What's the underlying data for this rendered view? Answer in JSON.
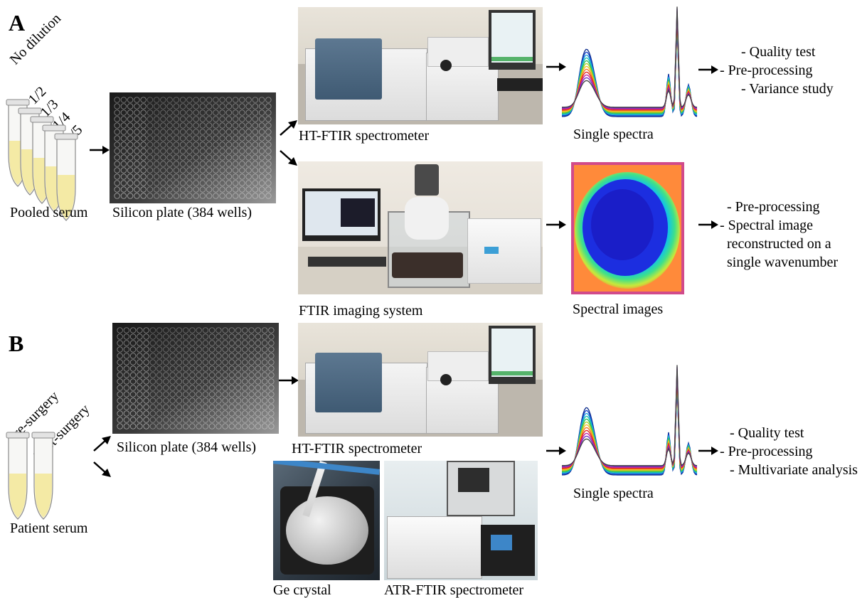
{
  "panels": {
    "a": "A",
    "b": "B"
  },
  "section_a": {
    "dilutions": [
      "No dilution",
      "1/2",
      "1/3",
      "1/4",
      "1/5"
    ],
    "serum_label": "Pooled serum",
    "plate_label": "Silicon plate (384 wells)",
    "ht_label": "HT-FTIR spectrometer",
    "imaging_label": "FTIR imaging system",
    "spectra_label": "Single spectra",
    "images_label": "Spectral images",
    "ht_steps": [
      "- Quality test",
      "- Pre-processing",
      "- Variance study"
    ],
    "imaging_steps": [
      "- Pre-processing",
      "- Spectral image",
      "reconstructed on a",
      "single wavenumber"
    ]
  },
  "section_b": {
    "sample_labels": [
      "Pre-surgery",
      "Post-surgery"
    ],
    "serum_label": "Patient serum",
    "plate_label": "Silicon plate (384 wells)",
    "ht_label": "HT-FTIR spectrometer",
    "ge_label": "Ge crystal",
    "atr_label": "ATR-FTIR spectrometer",
    "spectra_label": "Single spectra",
    "steps": [
      "- Quality test",
      "- Pre-processing",
      "- Multivariate analysis"
    ]
  },
  "colors": {
    "serum": "#f3e9a0",
    "plate": "#2b2b2b",
    "arrow": "#000000"
  }
}
